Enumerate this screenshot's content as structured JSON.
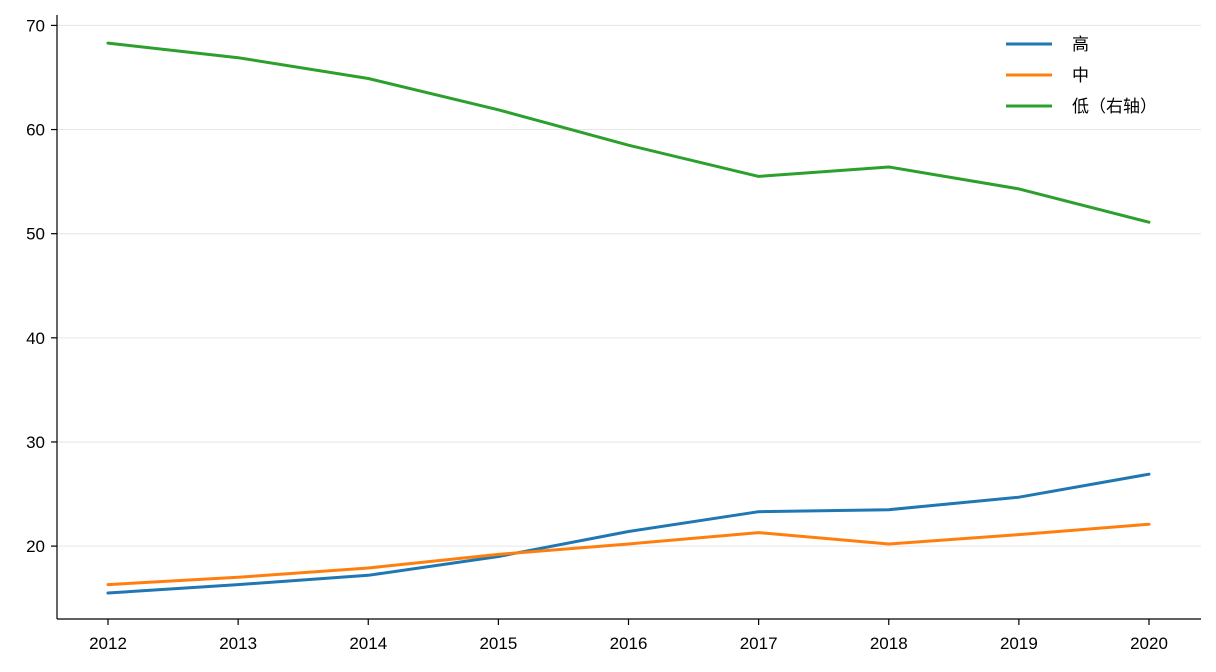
{
  "chart_data": {
    "type": "line",
    "title": "",
    "xlabel": "",
    "ylabel": "",
    "categories": [
      "2012",
      "2013",
      "2014",
      "2015",
      "2016",
      "2017",
      "2018",
      "2019",
      "2020"
    ],
    "ylim": [
      13,
      71
    ],
    "yticks": [
      20,
      30,
      40,
      50,
      60,
      70
    ],
    "grid": "horizontal",
    "legend": "top-right",
    "series": [
      {
        "name": "高",
        "color": "#1f77b4",
        "values": [
          15.5,
          16.3,
          17.2,
          19.0,
          21.4,
          23.3,
          23.5,
          24.7,
          26.9
        ]
      },
      {
        "name": "中",
        "color": "#ff7f0e",
        "values": [
          16.3,
          17.0,
          17.9,
          19.2,
          20.2,
          21.3,
          20.2,
          21.1,
          22.1
        ]
      },
      {
        "name": "低（右轴）",
        "color": "#2ca02c",
        "values": [
          68.3,
          66.9,
          64.9,
          61.9,
          58.5,
          55.5,
          56.4,
          54.3,
          51.1
        ]
      }
    ]
  }
}
